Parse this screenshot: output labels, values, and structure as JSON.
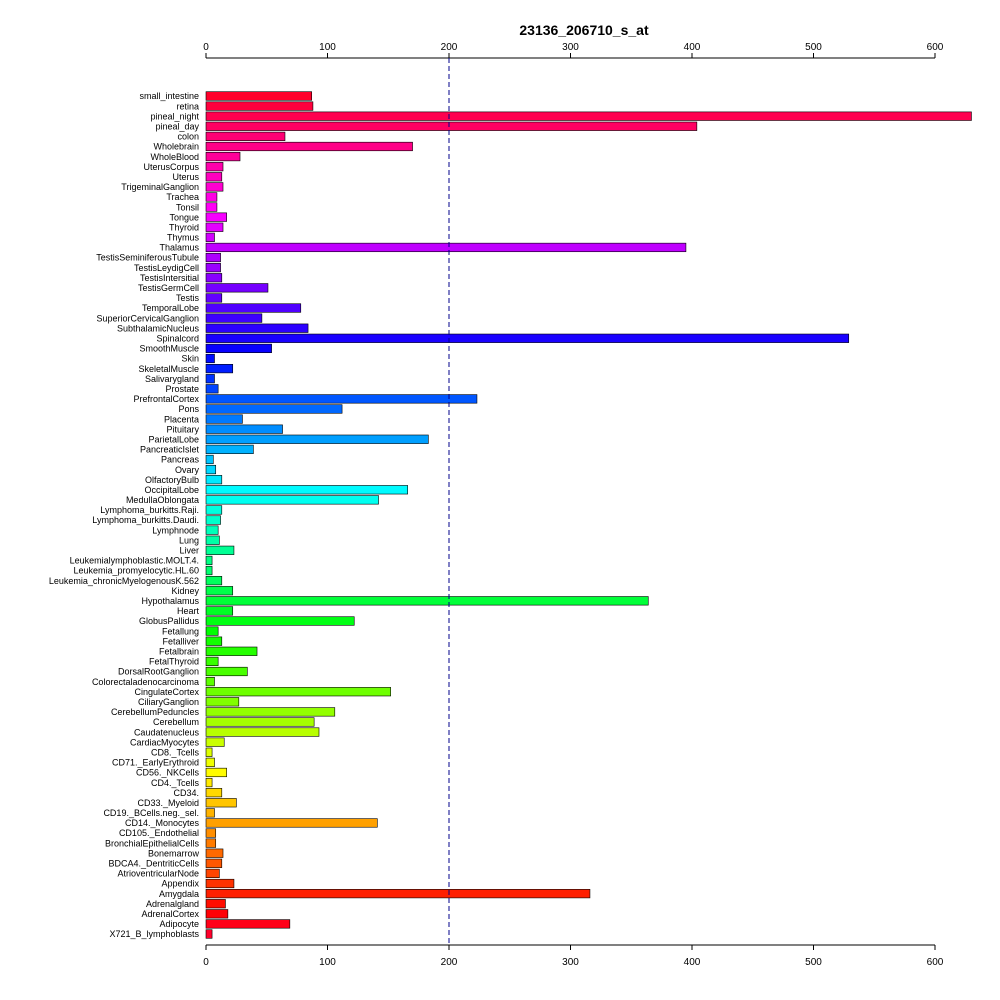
{
  "chart_data": {
    "type": "bar",
    "orientation": "horizontal",
    "title": "23136_206710_s_at",
    "xlabel": "",
    "ylabel": "",
    "xlim": [
      0,
      630
    ],
    "x_ticks": [
      0,
      100,
      200,
      300,
      400,
      500,
      600
    ],
    "axes": [
      "top",
      "bottom"
    ],
    "reference_line": {
      "value": 200,
      "style": "dashed",
      "color": "#00008b"
    },
    "grid": false,
    "legend": "none",
    "categories": [
      "small_intestine",
      "retina",
      "pineal_night",
      "pineal_day",
      "colon",
      "Wholebrain",
      "WholeBlood",
      "UterusCorpus",
      "Uterus",
      "TrigeminalGanglion",
      "Trachea",
      "Tonsil",
      "Tongue",
      "Thyroid",
      "Thymus",
      "Thalamus",
      "TestisSeminiferousTubule",
      "TestisLeydigCell",
      "TestisIntersitial",
      "TestisGermCell",
      "Testis",
      "TemporalLobe",
      "SuperiorCervicalGanglion",
      "SubthalamicNucleus",
      "Spinalcord",
      "SmoothMuscle",
      "Skin",
      "SkeletalMuscle",
      "Salivarygland",
      "Prostate",
      "PrefrontalCortex",
      "Pons",
      "Placenta",
      "Pituitary",
      "ParietalLobe",
      "PancreaticIslet",
      "Pancreas",
      "Ovary",
      "OlfactoryBulb",
      "OccipitalLobe",
      "MedullaOblongata",
      "Lymphoma_burkitts.Raji.",
      "Lymphoma_burkitts.Daudi.",
      "Lymphnode",
      "Lung",
      "Liver",
      "Leukemialymphoblastic.MOLT.4.",
      "Leukemia_promyelocytic.HL.60",
      "Leukemia_chronicMyelogenousK.562",
      "Kidney",
      "Hypothalamus",
      "Heart",
      "GlobusPallidus",
      "Fetallung",
      "Fetalliver",
      "Fetalbrain",
      "FetalThyroid",
      "DorsalRootGanglion",
      "Colorectaladenocarcinoma",
      "CingulateCortex",
      "CiliaryGanglion",
      "CerebellumPeduncles",
      "Cerebellum",
      "Caudatenucleus",
      "CardiacMyocytes",
      "CD8._Tcells",
      "CD71._EarlyErythroid",
      "CD56._NKCells",
      "CD4._Tcells",
      "CD34.",
      "CD33._Myeloid",
      "CD19._BCells.neg._sel.",
      "CD14._Monocytes",
      "CD105._Endothelial",
      "BronchialEpithelialCells",
      "Bonemarrow",
      "BDCA4._DentriticCells",
      "AtrioventricularNode",
      "Appendix",
      "Amygdala",
      "Adrenalgland",
      "AdrenalCortex",
      "Adipocyte",
      "X721_B_lymphoblasts"
    ],
    "values": [
      87,
      88,
      630,
      404,
      65,
      170,
      28,
      14,
      13,
      14,
      9,
      9,
      17,
      14,
      7,
      395,
      12,
      12,
      13,
      51,
      13,
      78,
      46,
      84,
      529,
      54,
      7,
      22,
      7,
      10,
      223,
      112,
      30,
      63,
      183,
      39,
      6,
      8,
      13,
      166,
      142,
      13,
      12,
      10,
      11,
      23,
      5,
      5,
      13,
      22,
      364,
      22,
      122,
      10,
      13,
      42,
      10,
      34,
      7,
      152,
      27,
      106,
      89,
      93,
      15,
      5,
      7,
      17,
      5,
      13,
      25,
      7,
      141,
      8,
      8,
      14,
      13,
      11,
      23,
      316,
      16,
      18,
      69,
      5
    ]
  }
}
